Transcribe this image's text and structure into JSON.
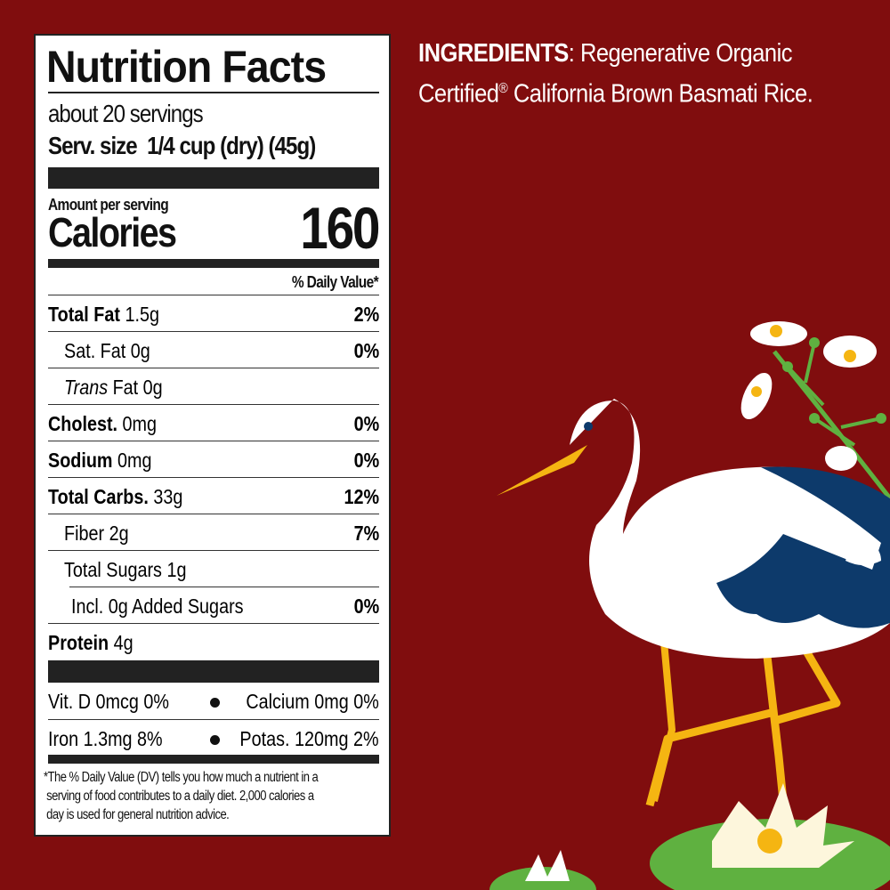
{
  "label": {
    "title": "Nutrition Facts",
    "servings": "about 20 servings",
    "serving_size_label": "Serv. size",
    "serving_size_value": "1/4 cup (dry) (45g)",
    "amount_per_serving": "Amount per serving",
    "calories_label": "Calories",
    "calories_value": "160",
    "daily_value_header": "% Daily Value*",
    "nutrients": [
      {
        "name": "Total Fat",
        "amount": "1.5g",
        "dv": "2%"
      },
      {
        "name": "Sat. Fat",
        "amount": "0g",
        "dv": "0%"
      },
      {
        "name": "Trans",
        "amount": "Fat 0g",
        "dv": ""
      },
      {
        "name": "Cholest.",
        "amount": "0mg",
        "dv": "0%"
      },
      {
        "name": "Sodium",
        "amount": "0mg",
        "dv": "0%"
      },
      {
        "name": "Total Carbs.",
        "amount": "33g",
        "dv": "12%"
      },
      {
        "name": "Fiber",
        "amount": "2g",
        "dv": "7%"
      },
      {
        "name": "Total Sugars",
        "amount": "1g",
        "dv": ""
      },
      {
        "name": "Incl. 0g Added Sugars",
        "amount": "",
        "dv": "0%"
      },
      {
        "name": "Protein",
        "amount": "4g",
        "dv": ""
      }
    ],
    "vitamins": [
      {
        "left": "Vit. D 0mcg 0%",
        "right": "Calcium 0mg 0%"
      },
      {
        "left": "Iron 1.3mg 8%",
        "right": "Potas. 120mg 2%"
      }
    ],
    "footnote_1": "*The % Daily Value (DV) tells you how much a nutrient in a",
    "footnote_2": "serving of food contributes to a daily diet. 2,000 calories a",
    "footnote_3": "day is used for general nutrition advice."
  },
  "ingredients": {
    "heading": "INGREDIENTS",
    "text_1": ": Regenerative Organic",
    "text_2": "Certified",
    "registered": "®",
    "text_3": " California Brown Basmati Rice."
  },
  "colors": {
    "background": "#800d0e",
    "stork_wing": "#0d3a6b",
    "beak_legs": "#f5b512",
    "lily_pad": "#5fb140"
  }
}
